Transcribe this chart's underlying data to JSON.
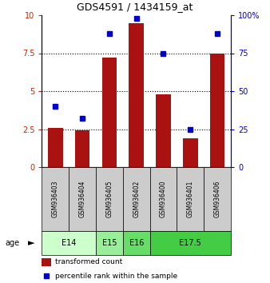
{
  "title": "GDS4591 / 1434159_at",
  "samples": [
    "GSM936403",
    "GSM936404",
    "GSM936405",
    "GSM936402",
    "GSM936400",
    "GSM936401",
    "GSM936406"
  ],
  "bar_values": [
    2.6,
    2.4,
    7.2,
    9.5,
    4.8,
    1.9,
    7.5
  ],
  "percentile_values": [
    40,
    32,
    88,
    98,
    75,
    25,
    88
  ],
  "bar_color": "#aa1111",
  "point_color": "#0000cc",
  "ylim_left": [
    0,
    10
  ],
  "ylim_right": [
    0,
    100
  ],
  "yticks_left": [
    0,
    2.5,
    5,
    7.5,
    10
  ],
  "ytick_labels_left": [
    "0",
    "2.5",
    "5",
    "7.5",
    "10"
  ],
  "yticks_right": [
    0,
    25,
    50,
    75,
    100
  ],
  "ytick_labels_right": [
    "0",
    "25",
    "50",
    "75",
    "100%"
  ],
  "grid_lines": [
    2.5,
    5,
    7.5
  ],
  "age_groups": [
    {
      "label": "E14",
      "start": 0,
      "end": 2,
      "color": "#ccffcc"
    },
    {
      "label": "E15",
      "start": 2,
      "end": 3,
      "color": "#99ee99"
    },
    {
      "label": "E16",
      "start": 3,
      "end": 4,
      "color": "#66dd66"
    },
    {
      "label": "E17.5",
      "start": 4,
      "end": 7,
      "color": "#44cc44"
    }
  ],
  "legend_bar_label": "transformed count",
  "legend_point_label": "percentile rank within the sample",
  "age_label": "age",
  "background_sample": "#cccccc",
  "left_axis_color": "#cc2200",
  "right_axis_color": "#0000cc"
}
